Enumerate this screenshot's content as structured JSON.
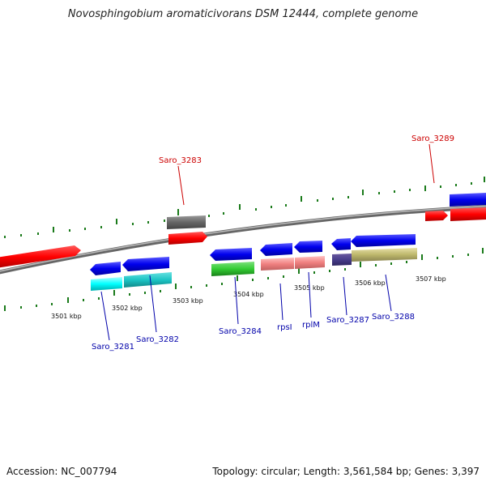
{
  "title": "Novosphingobium aromaticivorans DSM 12444, complete genome",
  "footer": {
    "accession": "Accession: NC_007794",
    "summary": "Topology: circular; Length: 3,561,584 bp; Genes: 3,397"
  },
  "colors": {
    "backbone": "#888888",
    "tick": "#1a7a1a",
    "red_label": "#cc0000",
    "blue_label": "#0000aa"
  },
  "scale_labels": [
    "3501 kbp",
    "3502 kbp",
    "3503 kbp",
    "3504 kbp",
    "3505 kbp",
    "3506 kbp",
    "3507 kbp"
  ],
  "gene_labels": {
    "saro_3283": "Saro_3283",
    "saro_3289": "Saro_3289",
    "saro_3281": "Saro_3281",
    "saro_3282": "Saro_3282",
    "saro_3284": "Saro_3284",
    "rpsI": "rpsI",
    "rplM": "rplM",
    "saro_3287": "Saro_3287",
    "saro_3288": "Saro_3288"
  }
}
